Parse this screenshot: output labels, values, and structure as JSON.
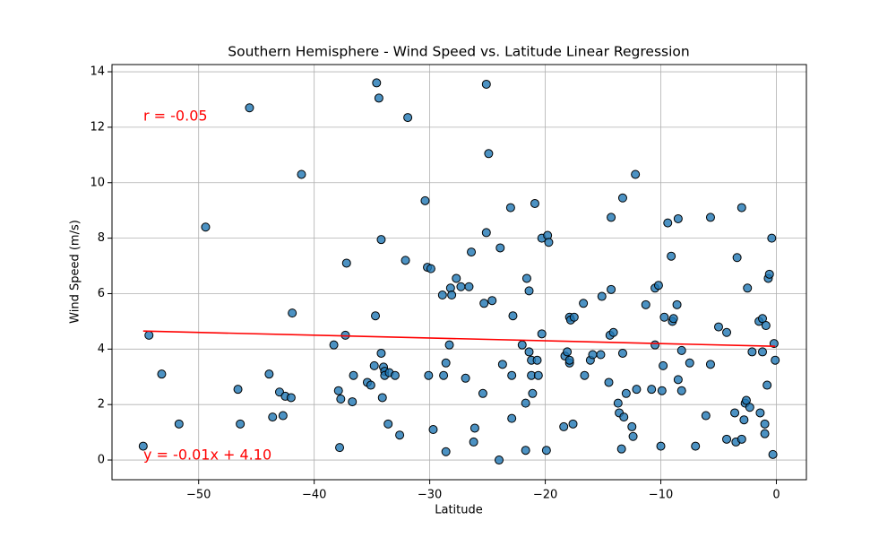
{
  "chart_data": {
    "type": "scatter",
    "title": "Southern Hemisphere - Wind Speed vs. Latitude Linear Regression",
    "x_label": "Latitude",
    "y_label": "Wind Speed (m/s)",
    "annotations": [
      "r = -0.05",
      "y = -0.01x + 4.10"
    ],
    "annotation_color": "red",
    "color": "#1f77b4",
    "grid": true,
    "xlim": [
      -57.5,
      2.6
    ],
    "ylim": [
      -0.71,
      14.26
    ],
    "xticks": [
      {
        "value": -50,
        "label": "−50"
      },
      {
        "value": -40,
        "label": "−40"
      },
      {
        "value": -30,
        "label": "−30"
      },
      {
        "value": -20,
        "label": "−20"
      },
      {
        "value": -10,
        "label": "−10"
      },
      0
    ],
    "yticks": [
      0,
      2,
      4,
      6,
      8,
      10,
      12,
      14
    ],
    "fit_line": {
      "x": [
        -54.8,
        -0.1
      ],
      "values": [
        4.65,
        4.1
      ],
      "color": "red"
    },
    "x": [
      -54.8,
      -54.3,
      -53.2,
      -51.7,
      -49.4,
      -46.6,
      -46.4,
      -45.6,
      -43.9,
      -43.6,
      -43.0,
      -42.7,
      -42.5,
      -42.0,
      -41.9,
      -41.1,
      -38.3,
      -37.9,
      -37.8,
      -37.7,
      -37.3,
      -37.2,
      -36.7,
      -36.6,
      -35.4,
      -35.1,
      -34.8,
      -34.7,
      -34.6,
      -34.4,
      -34.2,
      -34.2,
      -34.1,
      -34.0,
      -33.9,
      -33.9,
      -33.6,
      -33.5,
      -33.0,
      -32.6,
      -32.1,
      -31.9,
      -30.4,
      -30.2,
      -30.1,
      -29.9,
      -29.7,
      -28.9,
      -28.8,
      -28.6,
      -28.6,
      -28.3,
      -28.2,
      -28.1,
      -27.7,
      -27.3,
      -26.9,
      -26.6,
      -26.4,
      -26.2,
      -26.1,
      -25.4,
      -25.3,
      -25.1,
      -25.1,
      -24.9,
      -24.6,
      -24.0,
      -23.9,
      -23.7,
      -23.0,
      -22.9,
      -22.9,
      -22.8,
      -22.0,
      -21.7,
      -21.7,
      -21.6,
      -21.4,
      -21.4,
      -21.2,
      -21.2,
      -21.1,
      -20.9,
      -20.7,
      -20.6,
      -20.3,
      -20.3,
      -19.9,
      -19.8,
      -19.7,
      -18.4,
      -18.3,
      -18.1,
      -17.9,
      -17.9,
      -17.9,
      -17.8,
      -17.6,
      -17.5,
      -16.7,
      -16.6,
      -16.1,
      -15.9,
      -15.2,
      -15.1,
      -14.5,
      -14.4,
      -14.3,
      -14.3,
      -14.1,
      -13.7,
      -13.6,
      -13.4,
      -13.3,
      -13.3,
      -13.2,
      -13.0,
      -12.5,
      -12.4,
      -12.2,
      -12.1,
      -11.3,
      -10.8,
      -10.5,
      -10.5,
      -10.2,
      -10.0,
      -9.9,
      -9.8,
      -9.7,
      -9.4,
      -9.1,
      -9.0,
      -8.9,
      -8.6,
      -8.5,
      -8.5,
      -8.2,
      -8.2,
      -7.5,
      -7.0,
      -6.1,
      -5.7,
      -5.7,
      -5.0,
      -4.3,
      -4.3,
      -3.6,
      -3.5,
      -3.4,
      -3.0,
      -3.0,
      -2.8,
      -2.7,
      -2.6,
      -2.5,
      -2.3,
      -2.1,
      -1.5,
      -1.4,
      -1.2,
      -1.2,
      -1.0,
      -1.0,
      -0.9,
      -0.8,
      -0.7,
      -0.6,
      -0.4,
      -0.3,
      -0.2,
      -0.1
    ],
    "values": [
      0.5,
      4.5,
      3.1,
      1.3,
      8.4,
      2.55,
      1.3,
      12.7,
      3.1,
      1.55,
      2.45,
      1.6,
      2.3,
      2.25,
      5.3,
      10.3,
      4.15,
      2.5,
      0.45,
      2.2,
      4.5,
      7.1,
      2.1,
      3.05,
      2.8,
      2.7,
      3.4,
      5.2,
      13.6,
      13.05,
      7.95,
      3.85,
      2.25,
      3.35,
      3.2,
      3.05,
      1.3,
      3.15,
      3.05,
      0.9,
      7.2,
      12.35,
      9.35,
      6.95,
      3.05,
      6.9,
      1.1,
      5.95,
      3.05,
      3.5,
      0.3,
      4.15,
      6.2,
      5.95,
      6.55,
      6.25,
      2.95,
      6.25,
      7.5,
      0.65,
      1.15,
      2.4,
      5.65,
      13.55,
      8.2,
      11.05,
      5.75,
      0.0,
      7.65,
      3.45,
      9.1,
      1.5,
      3.05,
      5.2,
      4.15,
      2.05,
      0.35,
      6.55,
      3.9,
      6.1,
      3.6,
      3.05,
      2.4,
      9.25,
      3.6,
      3.05,
      4.55,
      8.0,
      0.35,
      8.1,
      7.85,
      1.2,
      3.75,
      3.9,
      3.5,
      3.6,
      5.15,
      5.05,
      1.3,
      5.15,
      5.65,
      3.05,
      3.6,
      3.8,
      3.8,
      5.9,
      2.8,
      4.5,
      8.75,
      6.15,
      4.6,
      2.05,
      1.7,
      0.4,
      3.85,
      9.45,
      1.55,
      2.4,
      1.2,
      0.85,
      10.3,
      2.55,
      5.6,
      2.55,
      6.2,
      4.15,
      6.3,
      0.5,
      2.5,
      3.4,
      5.15,
      8.55,
      7.35,
      5.0,
      5.1,
      5.6,
      2.9,
      8.7,
      3.95,
      2.5,
      3.5,
      0.5,
      1.6,
      8.75,
      3.45,
      4.8,
      0.75,
      4.6,
      1.7,
      0.65,
      7.3,
      0.75,
      9.1,
      1.45,
      2.05,
      2.15,
      6.2,
      1.9,
      3.9,
      5.0,
      1.7,
      3.9,
      5.1,
      1.3,
      0.95,
      4.85,
      2.7,
      6.55,
      6.7,
      8.0,
      0.2,
      4.2,
      3.6
    ]
  }
}
